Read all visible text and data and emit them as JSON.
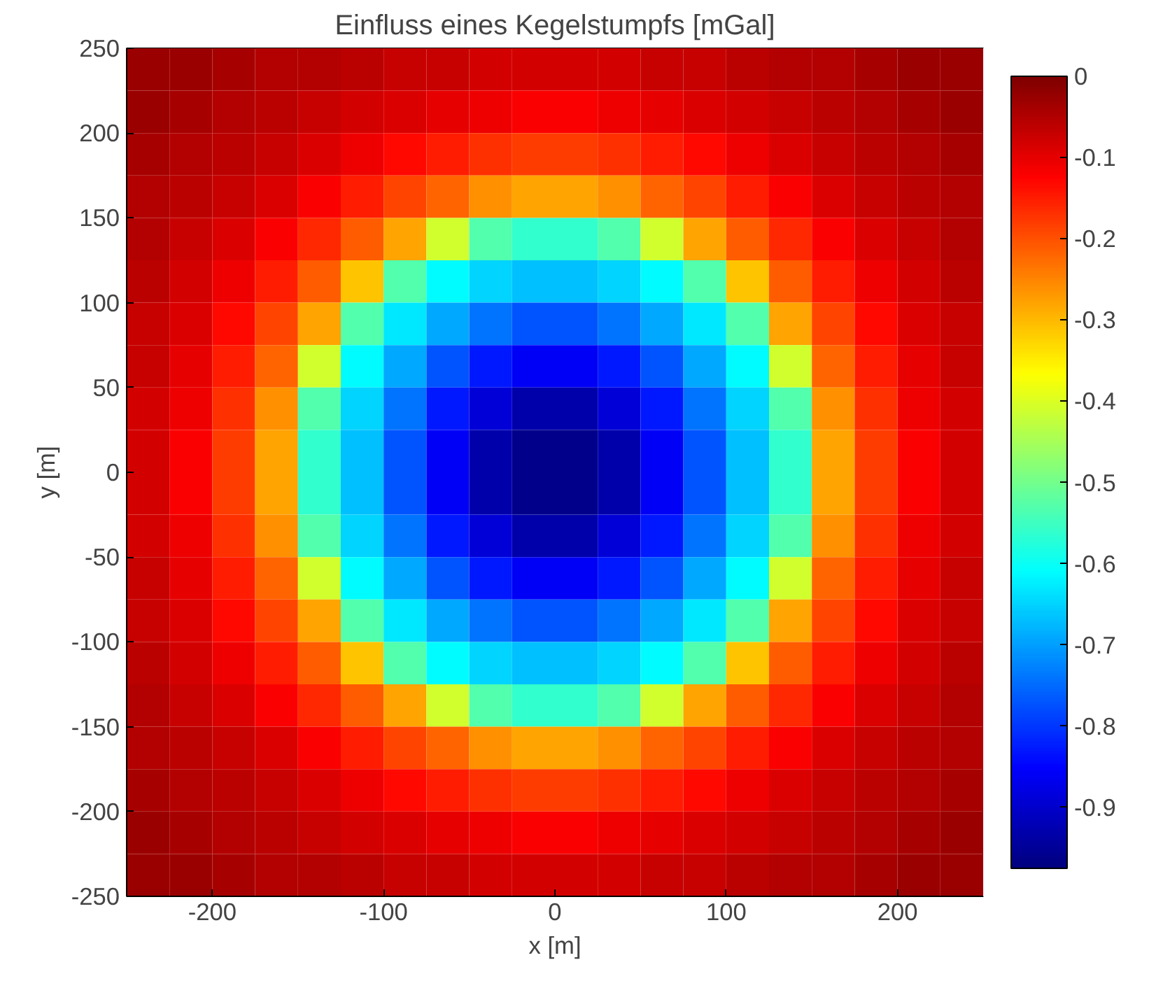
{
  "chart_data": {
    "type": "heatmap",
    "title": "Einfluss eines Kegelstumpfs [mGal]",
    "xlabel": "x [m]",
    "ylabel": "y [m]",
    "x": [
      -237.5,
      -212.5,
      -187.5,
      -162.5,
      -137.5,
      -112.5,
      -87.5,
      -62.5,
      -37.5,
      -12.5,
      12.5,
      37.5,
      62.5,
      87.5,
      112.5,
      137.5,
      162.5,
      187.5,
      212.5,
      237.5
    ],
    "y": [
      237.5,
      212.5,
      187.5,
      162.5,
      137.5,
      112.5,
      87.5,
      62.5,
      37.5,
      12.5,
      -12.5,
      -37.5,
      -62.5,
      -87.5,
      -112.5,
      -137.5,
      -162.5,
      -187.5,
      -212.5,
      -237.5
    ],
    "xlim": [
      -250,
      250
    ],
    "ylim": [
      -250,
      250
    ],
    "xticks": [
      -200,
      -100,
      0,
      100,
      200
    ],
    "yticks": [
      -250,
      -200,
      -150,
      -100,
      -50,
      0,
      50,
      100,
      150,
      200,
      250
    ],
    "clim": [
      -0.975,
      0
    ],
    "cticks": [
      -0.9,
      -0.8,
      -0.7,
      -0.6,
      -0.5,
      -0.4,
      -0.3,
      -0.2,
      -0.1,
      0
    ],
    "cells": [
      [
        -0.03,
        -0.03,
        -0.04,
        -0.05,
        -0.05,
        -0.06,
        -0.07,
        -0.07,
        -0.08,
        -0.08,
        -0.08,
        -0.08,
        -0.07,
        -0.07,
        -0.06,
        -0.05,
        -0.05,
        -0.04,
        -0.03,
        -0.03
      ],
      [
        -0.03,
        -0.04,
        -0.05,
        -0.06,
        -0.07,
        -0.08,
        -0.09,
        -0.1,
        -0.11,
        -0.12,
        -0.12,
        -0.11,
        -0.1,
        -0.09,
        -0.08,
        -0.07,
        -0.06,
        -0.05,
        -0.04,
        -0.03
      ],
      [
        -0.04,
        -0.05,
        -0.06,
        -0.07,
        -0.09,
        -0.11,
        -0.13,
        -0.15,
        -0.17,
        -0.18,
        -0.18,
        -0.17,
        -0.15,
        -0.13,
        -0.11,
        -0.09,
        -0.07,
        -0.06,
        -0.05,
        -0.04
      ],
      [
        -0.05,
        -0.06,
        -0.07,
        -0.09,
        -0.12,
        -0.15,
        -0.19,
        -0.22,
        -0.26,
        -0.28,
        -0.28,
        -0.26,
        -0.22,
        -0.19,
        -0.15,
        -0.12,
        -0.09,
        -0.07,
        -0.06,
        -0.05
      ],
      [
        -0.05,
        -0.07,
        -0.09,
        -0.12,
        -0.16,
        -0.21,
        -0.28,
        -0.41,
        -0.53,
        -0.56,
        -0.56,
        -0.53,
        -0.41,
        -0.28,
        -0.21,
        -0.16,
        -0.12,
        -0.09,
        -0.07,
        -0.05
      ],
      [
        -0.06,
        -0.08,
        -0.11,
        -0.15,
        -0.21,
        -0.31,
        -0.53,
        -0.61,
        -0.65,
        -0.67,
        -0.67,
        -0.65,
        -0.61,
        -0.53,
        -0.31,
        -0.21,
        -0.15,
        -0.11,
        -0.08,
        -0.06
      ],
      [
        -0.07,
        -0.09,
        -0.13,
        -0.19,
        -0.28,
        -0.53,
        -0.63,
        -0.69,
        -0.74,
        -0.77,
        -0.77,
        -0.74,
        -0.69,
        -0.63,
        -0.53,
        -0.28,
        -0.19,
        -0.13,
        -0.09,
        -0.07
      ],
      [
        -0.07,
        -0.1,
        -0.15,
        -0.22,
        -0.41,
        -0.61,
        -0.69,
        -0.77,
        -0.83,
        -0.86,
        -0.86,
        -0.83,
        -0.77,
        -0.69,
        -0.61,
        -0.41,
        -0.22,
        -0.15,
        -0.1,
        -0.07
      ],
      [
        -0.08,
        -0.11,
        -0.17,
        -0.26,
        -0.53,
        -0.65,
        -0.74,
        -0.83,
        -0.89,
        -0.93,
        -0.93,
        -0.89,
        -0.83,
        -0.74,
        -0.65,
        -0.53,
        -0.26,
        -0.17,
        -0.11,
        -0.08
      ],
      [
        -0.08,
        -0.12,
        -0.18,
        -0.28,
        -0.56,
        -0.67,
        -0.77,
        -0.86,
        -0.93,
        -0.96,
        -0.96,
        -0.93,
        -0.86,
        -0.77,
        -0.67,
        -0.56,
        -0.28,
        -0.18,
        -0.12,
        -0.08
      ],
      [
        -0.08,
        -0.12,
        -0.18,
        -0.28,
        -0.56,
        -0.67,
        -0.77,
        -0.86,
        -0.93,
        -0.96,
        -0.96,
        -0.93,
        -0.86,
        -0.77,
        -0.67,
        -0.56,
        -0.28,
        -0.18,
        -0.12,
        -0.08
      ],
      [
        -0.08,
        -0.11,
        -0.17,
        -0.26,
        -0.53,
        -0.65,
        -0.74,
        -0.83,
        -0.89,
        -0.93,
        -0.93,
        -0.89,
        -0.83,
        -0.74,
        -0.65,
        -0.53,
        -0.26,
        -0.17,
        -0.11,
        -0.08
      ],
      [
        -0.07,
        -0.1,
        -0.15,
        -0.22,
        -0.41,
        -0.61,
        -0.69,
        -0.77,
        -0.83,
        -0.86,
        -0.86,
        -0.83,
        -0.77,
        -0.69,
        -0.61,
        -0.41,
        -0.22,
        -0.15,
        -0.1,
        -0.07
      ],
      [
        -0.07,
        -0.09,
        -0.13,
        -0.19,
        -0.28,
        -0.53,
        -0.63,
        -0.69,
        -0.74,
        -0.77,
        -0.77,
        -0.74,
        -0.69,
        -0.63,
        -0.53,
        -0.28,
        -0.19,
        -0.13,
        -0.09,
        -0.07
      ],
      [
        -0.06,
        -0.08,
        -0.11,
        -0.15,
        -0.21,
        -0.31,
        -0.53,
        -0.61,
        -0.65,
        -0.67,
        -0.67,
        -0.65,
        -0.61,
        -0.53,
        -0.31,
        -0.21,
        -0.15,
        -0.11,
        -0.08,
        -0.06
      ],
      [
        -0.05,
        -0.07,
        -0.09,
        -0.12,
        -0.16,
        -0.21,
        -0.28,
        -0.41,
        -0.53,
        -0.56,
        -0.56,
        -0.53,
        -0.41,
        -0.28,
        -0.21,
        -0.16,
        -0.12,
        -0.09,
        -0.07,
        -0.05
      ],
      [
        -0.05,
        -0.06,
        -0.07,
        -0.09,
        -0.12,
        -0.15,
        -0.19,
        -0.22,
        -0.26,
        -0.28,
        -0.28,
        -0.26,
        -0.22,
        -0.19,
        -0.15,
        -0.12,
        -0.09,
        -0.07,
        -0.06,
        -0.05
      ],
      [
        -0.04,
        -0.05,
        -0.06,
        -0.07,
        -0.09,
        -0.11,
        -0.13,
        -0.15,
        -0.17,
        -0.18,
        -0.18,
        -0.17,
        -0.15,
        -0.13,
        -0.11,
        -0.09,
        -0.07,
        -0.06,
        -0.05,
        -0.04
      ],
      [
        -0.03,
        -0.04,
        -0.05,
        -0.06,
        -0.07,
        -0.08,
        -0.09,
        -0.1,
        -0.11,
        -0.12,
        -0.12,
        -0.11,
        -0.1,
        -0.09,
        -0.08,
        -0.07,
        -0.06,
        -0.05,
        -0.04,
        -0.03
      ],
      [
        -0.03,
        -0.03,
        -0.04,
        -0.05,
        -0.05,
        -0.06,
        -0.07,
        -0.07,
        -0.08,
        -0.08,
        -0.08,
        -0.08,
        -0.07,
        -0.07,
        -0.06,
        -0.05,
        -0.05,
        -0.04,
        -0.03,
        -0.03
      ]
    ]
  }
}
